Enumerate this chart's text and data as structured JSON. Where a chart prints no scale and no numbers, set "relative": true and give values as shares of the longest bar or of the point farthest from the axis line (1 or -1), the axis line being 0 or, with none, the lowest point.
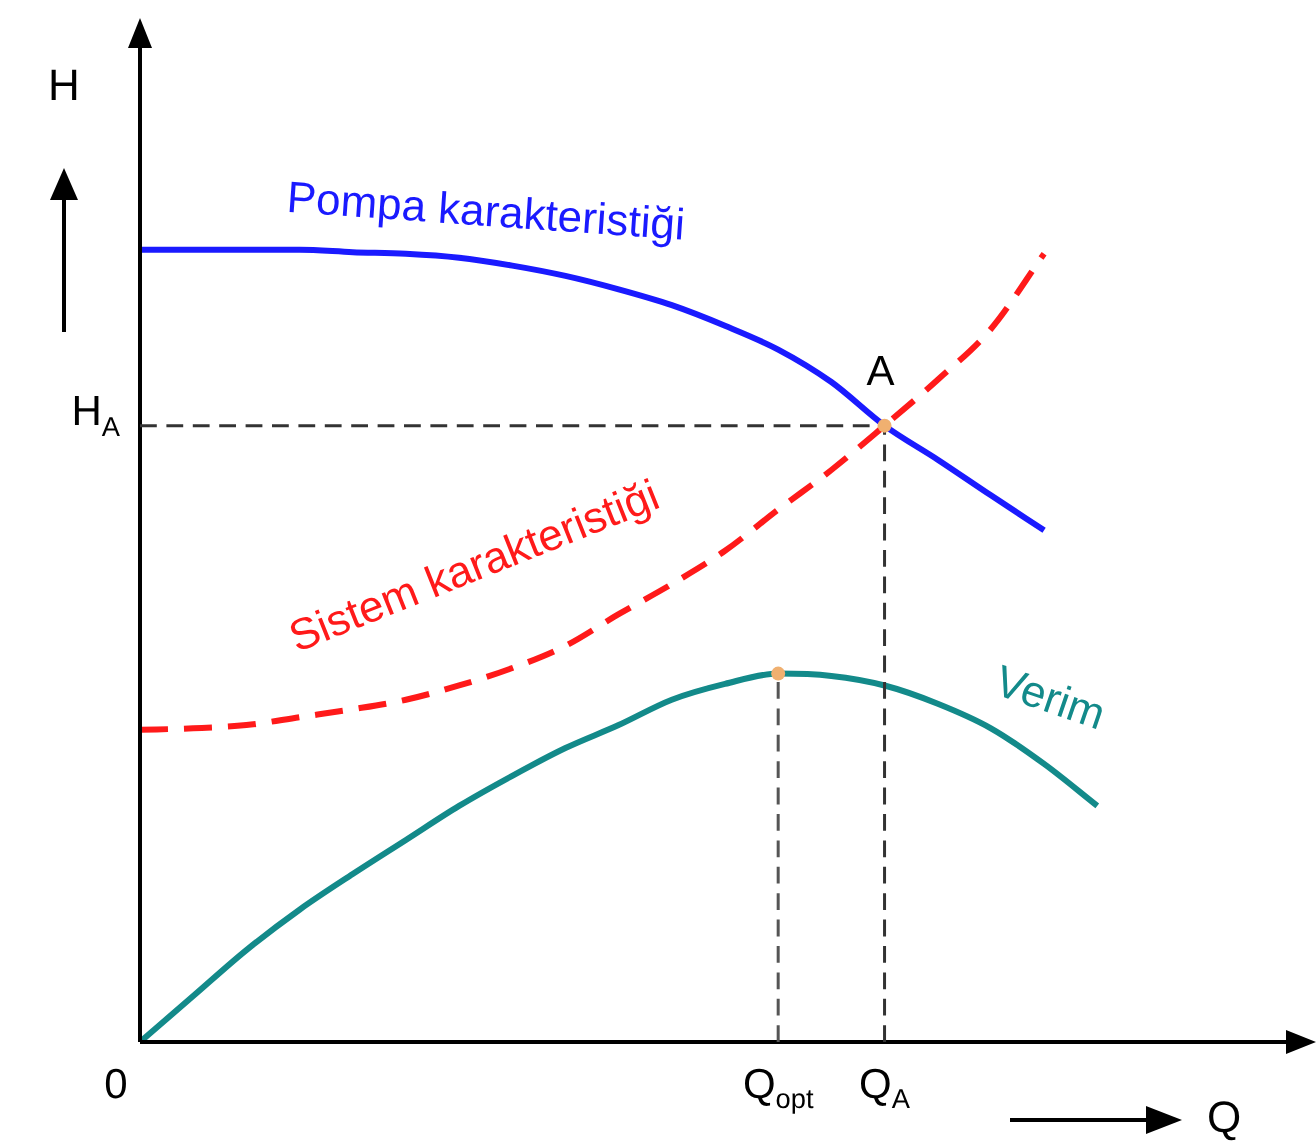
{
  "chart_data": {
    "type": "line",
    "relative": true,
    "xlabel": "Q",
    "ylabel": "H",
    "marker": "none",
    "categories": [
      "0",
      null,
      null,
      null,
      null,
      null,
      null,
      null,
      null,
      null,
      null,
      null,
      "Q$_{opt}$",
      null,
      "Q$_{A}$",
      null,
      null,
      null,
      null,
      null,
      null,
      null,
      null
    ],
    "series": [
      {
        "name": "Pompa karakteristiği",
        "color": "#1a1aff",
        "values": [
          1.0,
          1.0,
          1.0,
          1.0,
          0.997,
          0.995,
          0.99,
          0.98,
          0.967,
          0.95,
          0.93,
          0.904,
          0.874,
          0.833,
          0.778,
          0.735,
          0.69,
          0.646,
          null,
          null,
          null,
          null,
          null
        ]
      },
      {
        "name": "Sistem karakteristiği",
        "color": "#ff1a1a",
        "line_style": "dashed",
        "values": [
          0.394,
          0.396,
          0.4,
          0.41,
          0.42,
          0.432,
          0.45,
          0.472,
          0.5,
          0.54,
          0.578,
          0.62,
          0.672,
          0.722,
          0.778,
          0.836,
          0.9,
          0.995,
          null,
          null,
          null,
          null,
          null
        ]
      },
      {
        "name": "Verim",
        "color": "#138a8a",
        "values": [
          0,
          0.058,
          0.116,
          0.167,
          0.212,
          0.255,
          0.298,
          0.336,
          0.371,
          0.4,
          0.432,
          0.452,
          0.465,
          0.462,
          0.45,
          0.427,
          0.396,
          0.351,
          0.298,
          null,
          null,
          null,
          null
        ]
      }
    ],
    "ref_lines": [
      {
        "axis": "y",
        "value": 0.778,
        "label": "H$_{A}$",
        "color": "#333333",
        "line_style": "dashed"
      },
      {
        "axis": "x",
        "value": "Q$_{A}$",
        "color": "#333333",
        "line_style": "dashed"
      },
      {
        "axis": "x",
        "value": "Q$_{opt}$",
        "color": "#555555",
        "line_style": "dashed"
      }
    ],
    "annotations": [
      {
        "text": "A",
        "x": "Q$_{A}$",
        "y": 0.778
      }
    ]
  }
}
